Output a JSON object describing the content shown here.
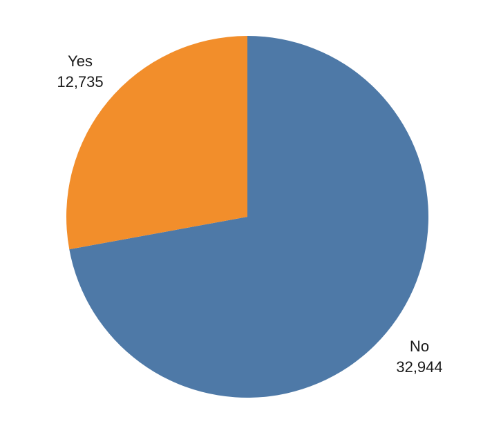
{
  "chart_data": {
    "type": "pie",
    "title": "",
    "categories": [
      "No",
      "Yes"
    ],
    "values": [
      32944,
      12735
    ],
    "slices": [
      {
        "label": "No",
        "value": 32944,
        "value_text": "32,944",
        "color": "#4E79A7"
      },
      {
        "label": "Yes",
        "value": 12735,
        "value_text": "12,735",
        "color": "#F28E2B"
      }
    ],
    "start_angle_deg": 0,
    "direction": "clockwise",
    "legend": "none",
    "label_position": "outside",
    "background": "#FFFFFF",
    "label_color": "#1A1A1A"
  }
}
